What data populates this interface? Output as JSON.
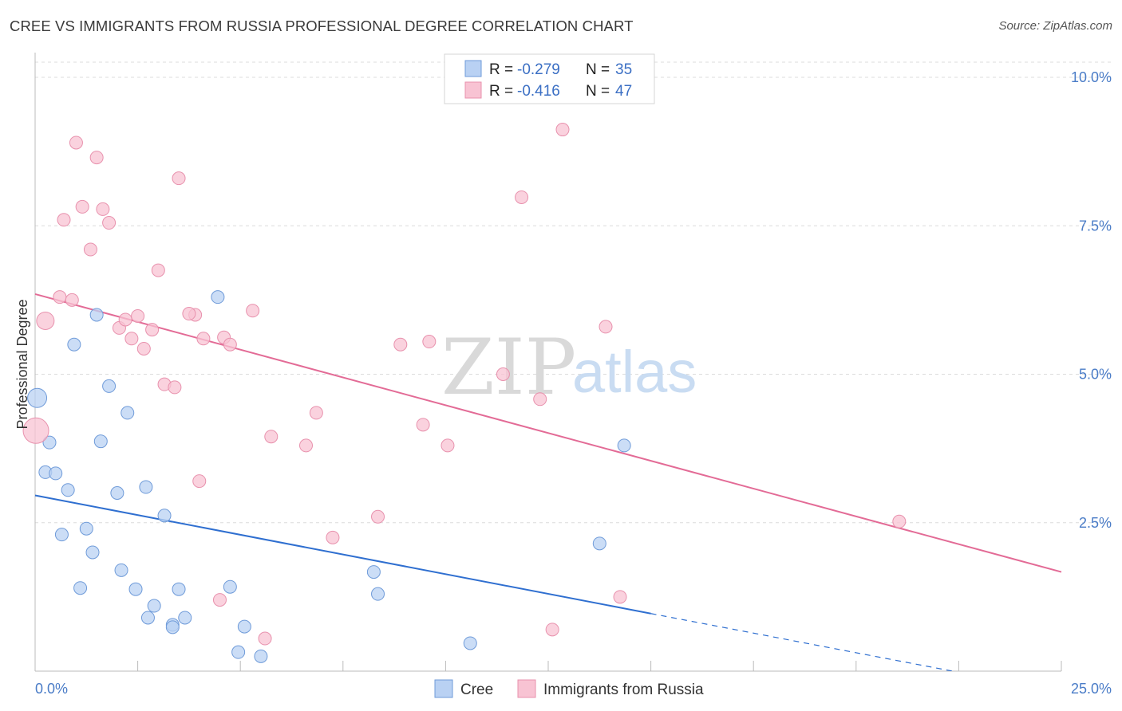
{
  "title": "CREE VS IMMIGRANTS FROM RUSSIA PROFESSIONAL DEGREE CORRELATION CHART",
  "source": "Source: ZipAtlas.com",
  "watermark": {
    "zip": "ZIP",
    "atlas": "atlas"
  },
  "colors": {
    "cree_fill": "#b9d1f3",
    "cree_stroke": "#6f9bd9",
    "cree_line": "#2f6fd0",
    "russia_fill": "#f8c3d3",
    "russia_stroke": "#e891ad",
    "russia_line": "#e36b96",
    "grid": "#dcdcdc",
    "axis": "#bbbbbb",
    "tick_text": "#4a7cc7"
  },
  "stats": [
    {
      "r_label": "R = ",
      "r_value": "-0.279",
      "n_label": "N = ",
      "n_value": "35"
    },
    {
      "r_label": "R = ",
      "r_value": "-0.416",
      "n_label": "N = ",
      "n_value": "47"
    }
  ],
  "chart_data": {
    "type": "scatter",
    "title": "CREE VS IMMIGRANTS FROM RUSSIA PROFESSIONAL DEGREE CORRELATION CHART",
    "xlabel": "",
    "ylabel": "Professional Degree",
    "xlim": [
      0,
      25
    ],
    "ylim": [
      0,
      10.5
    ],
    "x_tick_labels": [
      "0.0%",
      "25.0%"
    ],
    "y_ticks": [
      2.5,
      5.0,
      7.5,
      10.0
    ],
    "y_tick_labels": [
      "2.5%",
      "5.0%",
      "7.5%",
      "10.0%"
    ],
    "grid": true,
    "legend_position": "bottom-center",
    "series": [
      {
        "name": "Cree",
        "trend": {
          "x": [
            0,
            15
          ],
          "y": [
            2.96,
            0.97
          ],
          "dashed_to": [
            25,
            -0.35
          ]
        },
        "points": [
          [
            0.05,
            4.6,
            12
          ],
          [
            0.35,
            3.85,
            8
          ],
          [
            0.25,
            3.35,
            8
          ],
          [
            0.5,
            3.33,
            8
          ],
          [
            0.8,
            3.05,
            8
          ],
          [
            0.95,
            5.5,
            8
          ],
          [
            1.5,
            6.0,
            8
          ],
          [
            1.8,
            4.8,
            8
          ],
          [
            2.25,
            4.35,
            8
          ],
          [
            1.6,
            3.87,
            8
          ],
          [
            0.65,
            2.3,
            8
          ],
          [
            1.25,
            2.4,
            8
          ],
          [
            1.4,
            2.0,
            8
          ],
          [
            2.0,
            3.0,
            8
          ],
          [
            2.7,
            3.1,
            8
          ],
          [
            3.15,
            2.62,
            8
          ],
          [
            2.1,
            1.7,
            8
          ],
          [
            1.1,
            1.4,
            8
          ],
          [
            2.45,
            1.38,
            8
          ],
          [
            2.9,
            1.1,
            8
          ],
          [
            2.75,
            0.9,
            8
          ],
          [
            3.35,
            0.78,
            8
          ],
          [
            3.35,
            0.74,
            8
          ],
          [
            3.5,
            1.38,
            8
          ],
          [
            3.65,
            0.9,
            8
          ],
          [
            4.45,
            6.3,
            8
          ],
          [
            4.75,
            1.42,
            8
          ],
          [
            5.1,
            0.75,
            8
          ],
          [
            4.95,
            0.32,
            8
          ],
          [
            5.5,
            0.25,
            8
          ],
          [
            8.25,
            1.67,
            8
          ],
          [
            8.35,
            1.3,
            8
          ],
          [
            10.6,
            0.47,
            8
          ],
          [
            13.75,
            2.15,
            8
          ],
          [
            14.35,
            3.8,
            8
          ]
        ]
      },
      {
        "name": "Immigrants from Russia",
        "trend": {
          "x": [
            0,
            25
          ],
          "y": [
            6.35,
            1.67
          ]
        },
        "points": [
          [
            0.02,
            4.05,
            16
          ],
          [
            0.25,
            5.9,
            11
          ],
          [
            0.6,
            6.3,
            8
          ],
          [
            0.9,
            6.25,
            8
          ],
          [
            0.7,
            7.6,
            8
          ],
          [
            1.0,
            8.9,
            8
          ],
          [
            1.5,
            8.65,
            8
          ],
          [
            1.15,
            7.82,
            8
          ],
          [
            1.65,
            7.78,
            8
          ],
          [
            1.8,
            7.55,
            8
          ],
          [
            1.35,
            7.1,
            8
          ],
          [
            2.05,
            5.78,
            8
          ],
          [
            2.2,
            5.92,
            8
          ],
          [
            2.35,
            5.6,
            8
          ],
          [
            2.5,
            5.98,
            8
          ],
          [
            2.65,
            5.43,
            8
          ],
          [
            2.85,
            5.75,
            8
          ],
          [
            3.0,
            6.75,
            8
          ],
          [
            3.5,
            8.3,
            8
          ],
          [
            3.9,
            6.0,
            8
          ],
          [
            3.75,
            6.02,
            8
          ],
          [
            4.1,
            5.6,
            8
          ],
          [
            4.6,
            5.62,
            8
          ],
          [
            4.75,
            5.5,
            8
          ],
          [
            3.15,
            4.83,
            8
          ],
          [
            3.4,
            4.78,
            8
          ],
          [
            5.3,
            6.07,
            8
          ],
          [
            4.0,
            3.2,
            8
          ],
          [
            4.5,
            1.2,
            8
          ],
          [
            5.6,
            0.55,
            8
          ],
          [
            5.75,
            3.95,
            8
          ],
          [
            6.6,
            3.8,
            8
          ],
          [
            6.85,
            4.35,
            8
          ],
          [
            7.25,
            2.25,
            8
          ],
          [
            8.35,
            2.6,
            8
          ],
          [
            8.9,
            5.5,
            8
          ],
          [
            9.45,
            4.15,
            8
          ],
          [
            9.6,
            5.55,
            8
          ],
          [
            10.05,
            3.8,
            8
          ],
          [
            11.4,
            5.0,
            8
          ],
          [
            11.85,
            7.98,
            8
          ],
          [
            12.3,
            4.58,
            8
          ],
          [
            12.6,
            0.7,
            8
          ],
          [
            12.85,
            9.12,
            8
          ],
          [
            13.9,
            5.8,
            8
          ],
          [
            14.25,
            1.25,
            8
          ],
          [
            21.05,
            2.52,
            8
          ]
        ]
      }
    ]
  }
}
